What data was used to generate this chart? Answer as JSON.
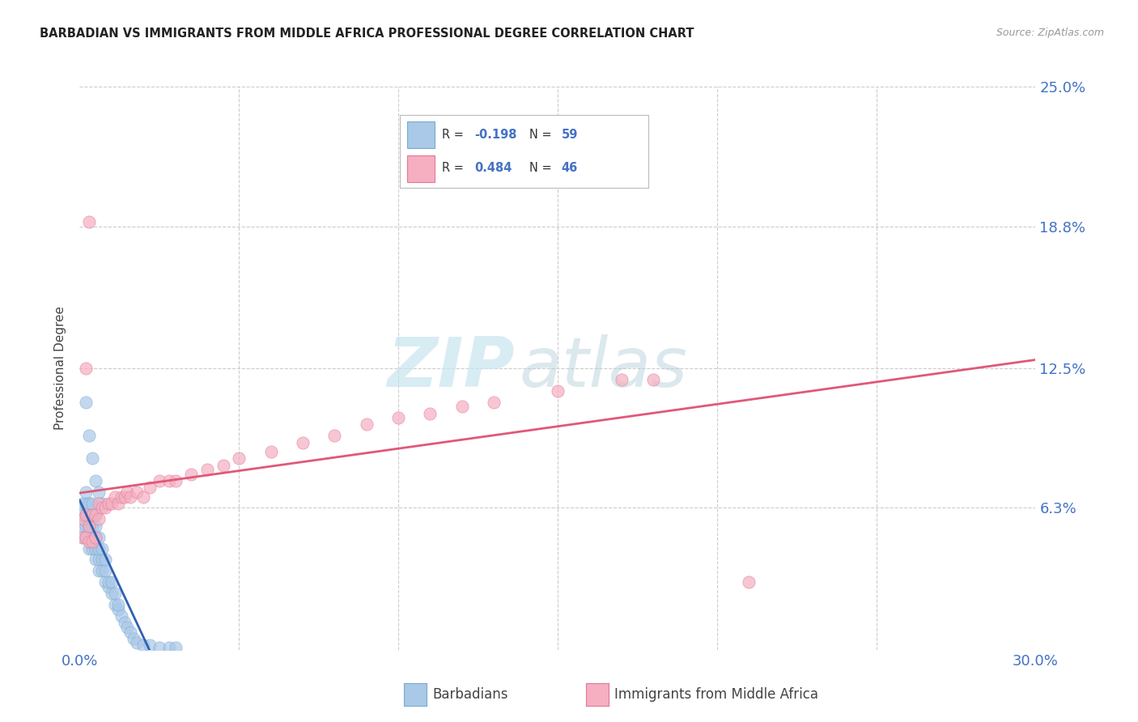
{
  "title": "BARBADIAN VS IMMIGRANTS FROM MIDDLE AFRICA PROFESSIONAL DEGREE CORRELATION CHART",
  "source": "Source: ZipAtlas.com",
  "ylabel": "Professional Degree",
  "xlim": [
    0.0,
    0.3
  ],
  "ylim": [
    0.0,
    0.25
  ],
  "ytick_labels_right": [
    "6.3%",
    "12.5%",
    "18.8%",
    "25.0%"
  ],
  "ytick_values_right": [
    0.063,
    0.125,
    0.188,
    0.25
  ],
  "barbadian_color": "#aac8e8",
  "barbadian_edge_color": "#7aaad0",
  "middle_africa_color": "#f5afc0",
  "middle_africa_edge_color": "#e07898",
  "barbadian_R": -0.198,
  "barbadian_N": 59,
  "middle_africa_R": 0.484,
  "middle_africa_N": 46,
  "trend_blue": "#3060b0",
  "trend_pink": "#e05878",
  "legend_label_1": "Barbadians",
  "legend_label_2": "Immigrants from Middle Africa",
  "watermark_zip": "ZIP",
  "watermark_atlas": "atlas",
  "grid_color": "#cccccc",
  "label_color": "#4472c4",
  "title_color": "#222222",
  "legend_text_color": "#4472c4",
  "bx": [
    0.001,
    0.001,
    0.001,
    0.001,
    0.002,
    0.002,
    0.002,
    0.002,
    0.002,
    0.003,
    0.003,
    0.003,
    0.003,
    0.003,
    0.004,
    0.004,
    0.004,
    0.004,
    0.004,
    0.005,
    0.005,
    0.005,
    0.005,
    0.005,
    0.006,
    0.006,
    0.006,
    0.006,
    0.007,
    0.007,
    0.007,
    0.008,
    0.008,
    0.008,
    0.009,
    0.009,
    0.01,
    0.01,
    0.011,
    0.011,
    0.012,
    0.012,
    0.013,
    0.014,
    0.015,
    0.016,
    0.017,
    0.018,
    0.02,
    0.022,
    0.025,
    0.028,
    0.03,
    0.002,
    0.003,
    0.004,
    0.005,
    0.006,
    0.007
  ],
  "by": [
    0.05,
    0.055,
    0.06,
    0.065,
    0.055,
    0.06,
    0.065,
    0.07,
    0.05,
    0.045,
    0.05,
    0.055,
    0.06,
    0.065,
    0.045,
    0.05,
    0.055,
    0.06,
    0.065,
    0.04,
    0.045,
    0.05,
    0.055,
    0.06,
    0.035,
    0.04,
    0.045,
    0.05,
    0.035,
    0.04,
    0.045,
    0.03,
    0.035,
    0.04,
    0.028,
    0.03,
    0.025,
    0.03,
    0.02,
    0.025,
    0.018,
    0.02,
    0.015,
    0.012,
    0.01,
    0.008,
    0.005,
    0.003,
    0.002,
    0.002,
    0.001,
    0.001,
    0.001,
    0.11,
    0.095,
    0.085,
    0.075,
    0.07,
    0.065
  ],
  "mx": [
    0.001,
    0.001,
    0.002,
    0.002,
    0.003,
    0.003,
    0.004,
    0.004,
    0.005,
    0.005,
    0.006,
    0.006,
    0.007,
    0.008,
    0.009,
    0.01,
    0.011,
    0.012,
    0.013,
    0.014,
    0.015,
    0.016,
    0.018,
    0.02,
    0.022,
    0.025,
    0.028,
    0.03,
    0.035,
    0.04,
    0.045,
    0.05,
    0.06,
    0.07,
    0.08,
    0.09,
    0.1,
    0.11,
    0.12,
    0.13,
    0.15,
    0.17,
    0.18,
    0.21,
    0.002,
    0.003
  ],
  "my": [
    0.05,
    0.058,
    0.05,
    0.06,
    0.048,
    0.055,
    0.048,
    0.06,
    0.05,
    0.06,
    0.058,
    0.065,
    0.063,
    0.063,
    0.065,
    0.065,
    0.068,
    0.065,
    0.068,
    0.068,
    0.07,
    0.068,
    0.07,
    0.068,
    0.072,
    0.075,
    0.075,
    0.075,
    0.078,
    0.08,
    0.082,
    0.085,
    0.088,
    0.092,
    0.095,
    0.1,
    0.103,
    0.105,
    0.108,
    0.11,
    0.115,
    0.12,
    0.12,
    0.03,
    0.125,
    0.19
  ]
}
